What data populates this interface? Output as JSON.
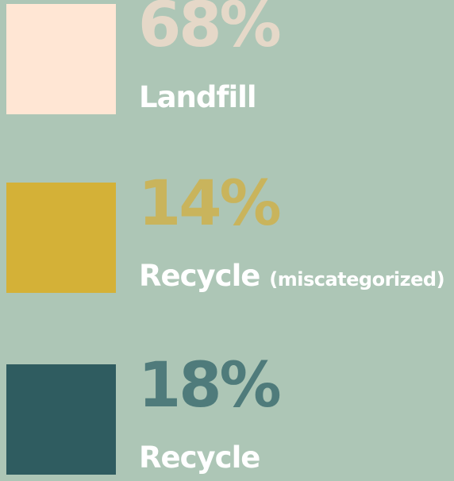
{
  "colors": {
    "background": "#adc6b6",
    "label_text": "#ffffff"
  },
  "chart_data": {
    "type": "bar",
    "unit": "%",
    "categories": [
      "Landfill",
      "Recycle",
      "Recycle"
    ],
    "values": [
      68,
      14,
      18
    ],
    "items": [
      {
        "percent_label": "68%",
        "value": 68,
        "label": "Landfill",
        "note": "",
        "swatch_color": "#ffe6d4",
        "percent_color": "#e5d8c8"
      },
      {
        "percent_label": "14%",
        "value": 14,
        "label": "Recycle",
        "note": "(miscategorized)",
        "swatch_color": "#d4b137",
        "percent_color": "#c9b45c"
      },
      {
        "percent_label": "18%",
        "value": 18,
        "label": "Recycle",
        "note": "",
        "swatch_color": "#2f5c60",
        "percent_color": "#4f7b7b"
      }
    ]
  }
}
